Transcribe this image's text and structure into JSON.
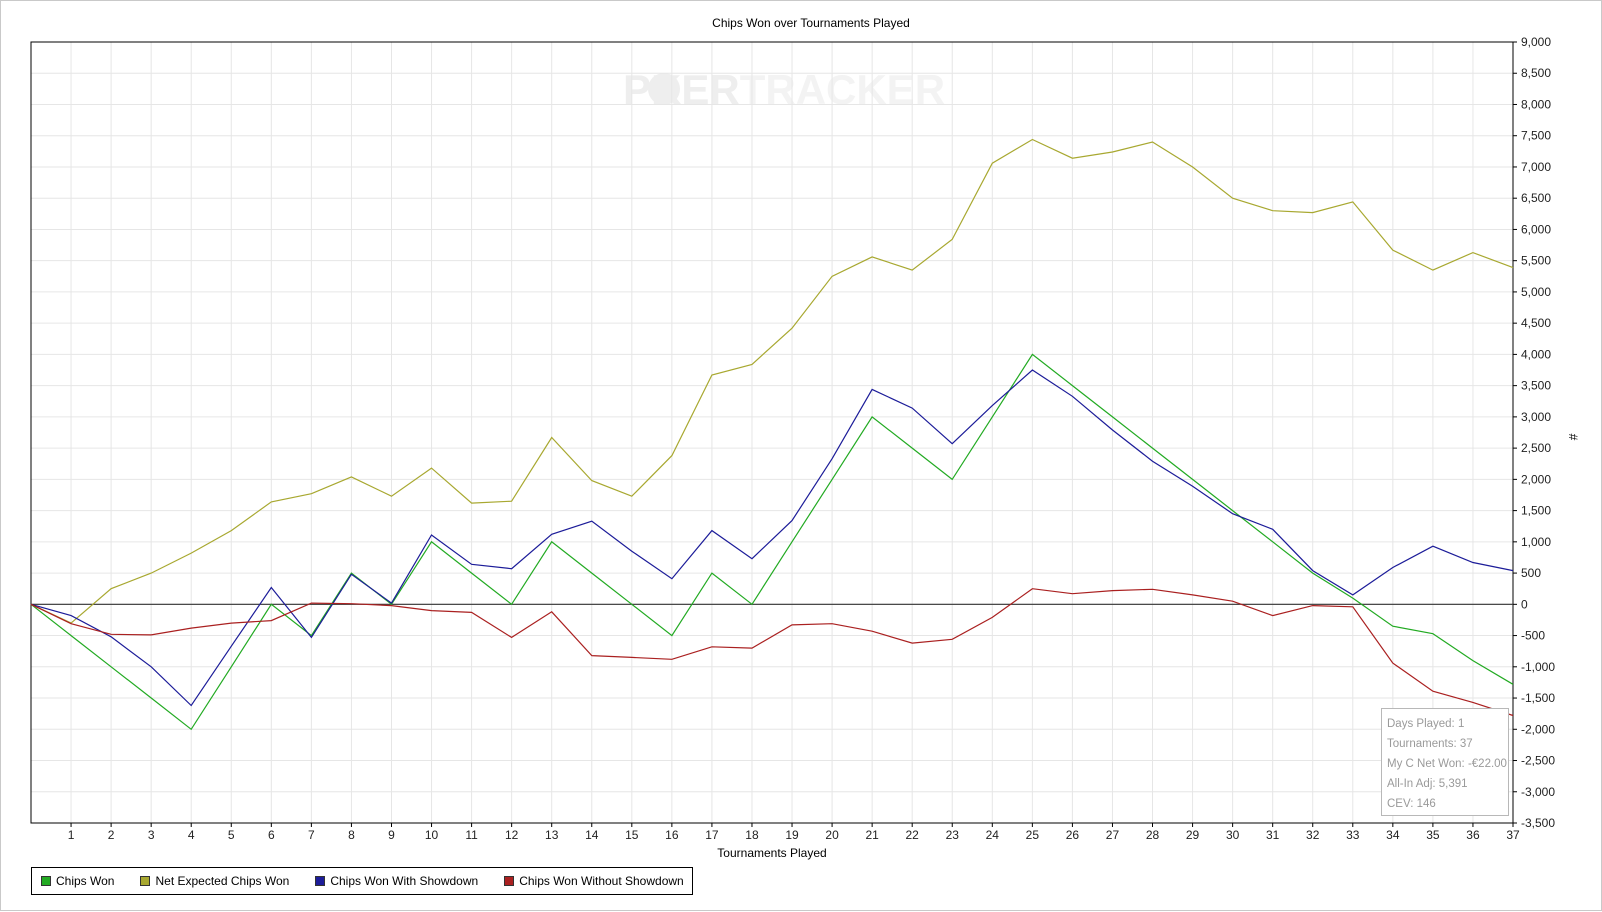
{
  "window": {
    "title": "Chips Won over Tournaments Played"
  },
  "watermark": {
    "text_a": "P",
    "text_b": "KER",
    "text_c": "TRACKER"
  },
  "chart_data": {
    "type": "line",
    "title": "Chips Won over Tournaments Played",
    "xlabel": "Tournaments Played",
    "ylabel": "#",
    "xlim": [
      0,
      37
    ],
    "ylim": [
      -3500,
      9000
    ],
    "grid": true,
    "legend_position": "bottom-left",
    "x": [
      0,
      1,
      2,
      3,
      4,
      5,
      6,
      7,
      8,
      9,
      10,
      11,
      12,
      13,
      14,
      15,
      16,
      17,
      18,
      19,
      20,
      21,
      22,
      23,
      24,
      25,
      26,
      27,
      28,
      29,
      30,
      31,
      32,
      33,
      34,
      35,
      36,
      37
    ],
    "x_ticks": [
      "1",
      "2",
      "3",
      "4",
      "5",
      "6",
      "7",
      "8",
      "9",
      "10",
      "11",
      "12",
      "13",
      "14",
      "15",
      "16",
      "17",
      "18",
      "19",
      "20",
      "21",
      "22",
      "23",
      "24",
      "25",
      "26",
      "27",
      "28",
      "29",
      "30",
      "31",
      "32",
      "33",
      "34",
      "35",
      "36",
      "37"
    ],
    "y_ticks": [
      "9,000",
      "8,500",
      "8,000",
      "7,500",
      "7,000",
      "6,500",
      "6,000",
      "5,500",
      "5,000",
      "4,500",
      "4,000",
      "3,500",
      "3,000",
      "2,500",
      "2,000",
      "1,500",
      "1,000",
      "500",
      "0",
      "-500",
      "-1,000",
      "-1,500",
      "-2,000",
      "-2,500",
      "-3,000",
      "-3,500"
    ],
    "series": [
      {
        "name": "Chips Won",
        "color": "#22aa22",
        "values": [
          0,
          -500,
          -1000,
          -1500,
          -2000,
          -1000,
          0,
          -500,
          500,
          0,
          1000,
          500,
          0,
          1000,
          500,
          0,
          -500,
          500,
          0,
          1000,
          2000,
          3000,
          2500,
          2000,
          3000,
          4000,
          3500,
          3000,
          2500,
          2000,
          1500,
          1000,
          500,
          100,
          -350,
          -470,
          -900,
          -1280
        ]
      },
      {
        "name": "Net Expected Chips Won",
        "color": "#a8a830",
        "values": [
          0,
          -300,
          250,
          500,
          820,
          1180,
          1640,
          1770,
          2040,
          1730,
          2180,
          1620,
          1650,
          2670,
          1980,
          1730,
          2380,
          3670,
          3840,
          4420,
          5250,
          5560,
          5350,
          5840,
          7060,
          7440,
          7140,
          7240,
          7400,
          7000,
          6500,
          6300,
          6270,
          6440,
          5670,
          5350,
          5630,
          5390
        ]
      },
      {
        "name": "Chips Won With Showdown",
        "color": "#1c1c99",
        "values": [
          0,
          -180,
          -520,
          -1000,
          -1620,
          -670,
          270,
          -530,
          480,
          20,
          1110,
          640,
          570,
          1120,
          1330,
          850,
          410,
          1180,
          730,
          1340,
          2330,
          3440,
          3140,
          2570,
          3180,
          3750,
          3330,
          2790,
          2290,
          1890,
          1450,
          1200,
          540,
          150,
          590,
          930,
          670,
          540
        ]
      },
      {
        "name": "Chips Won Without Showdown",
        "color": "#aa2020",
        "values": [
          0,
          -310,
          -480,
          -490,
          -380,
          -300,
          -260,
          20,
          10,
          -20,
          -100,
          -130,
          -530,
          -120,
          -820,
          -850,
          -880,
          -680,
          -700,
          -330,
          -310,
          -430,
          -620,
          -560,
          -210,
          250,
          170,
          220,
          240,
          150,
          50,
          -180,
          -20,
          -40,
          -940,
          -1390,
          -1570,
          -1780
        ]
      }
    ]
  },
  "info_box": {
    "days_played": "Days Played: 1",
    "tournaments": "Tournaments: 37",
    "net_won": "My C Net Won: -€22.00",
    "all_in_adj": "All-In Adj: 5,391",
    "cev": "CEV: 146"
  },
  "legend": {
    "items": [
      {
        "label": "Chips Won",
        "color": "#22aa22"
      },
      {
        "label": "Net Expected Chips Won",
        "color": "#a8a830"
      },
      {
        "label": "Chips Won With Showdown",
        "color": "#1c1c99"
      },
      {
        "label": "Chips Won Without Showdown",
        "color": "#aa2020"
      }
    ]
  }
}
